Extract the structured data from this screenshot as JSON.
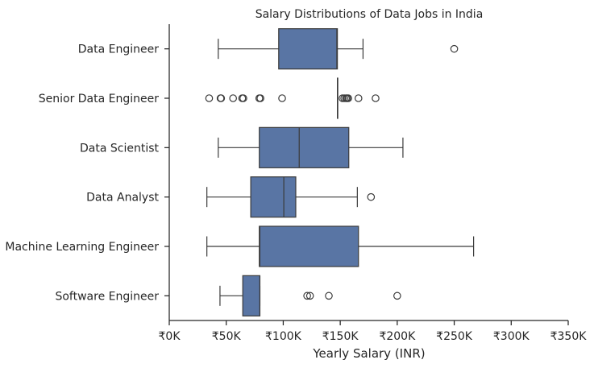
{
  "chart_data": {
    "type": "boxplot",
    "orientation": "horizontal",
    "title": "Salary Distributions of Data Jobs in India",
    "xlabel": "Yearly Salary (INR)",
    "ylabel": "",
    "xlim": [
      0,
      350000
    ],
    "xticks": [
      0,
      50000,
      100000,
      150000,
      200000,
      250000,
      300000,
      350000
    ],
    "xtick_labels": [
      "₹0K",
      "₹50K",
      "₹100K",
      "₹150K",
      "₹200K",
      "₹250K",
      "₹300K",
      "₹350K"
    ],
    "grid": false,
    "box_color": "#5975a4",
    "line_color": "#3a3a3a",
    "categories": [
      "Data Engineer",
      "Senior Data Engineer",
      "Data Scientist",
      "Data Analyst",
      "Machine Learning Engineer",
      "Software Engineer"
    ],
    "boxes": [
      {
        "name": "Data Engineer",
        "whisker_low": 43000,
        "q1": 96000,
        "median": 147000,
        "q3": 147500,
        "whisker_high": 170000,
        "outliers": [
          250000
        ]
      },
      {
        "name": "Senior Data Engineer",
        "whisker_low": 147500,
        "q1": 147500,
        "median": 147500,
        "q3": 147500,
        "whisker_high": 147500,
        "outliers": [
          35000,
          45000,
          45500,
          56000,
          64000,
          65000,
          79000,
          80000,
          99000,
          152000,
          153500,
          155000,
          156000,
          157000,
          166000,
          181000
        ]
      },
      {
        "name": "Data Scientist",
        "whisker_low": 43000,
        "q1": 79000,
        "median": 114000,
        "q3": 157500,
        "whisker_high": 205000,
        "outliers": []
      },
      {
        "name": "Data Analyst",
        "whisker_low": 33000,
        "q1": 71500,
        "median": 100500,
        "q3": 111000,
        "whisker_high": 165000,
        "outliers": [
          177000
        ]
      },
      {
        "name": "Machine Learning Engineer",
        "whisker_low": 33000,
        "q1": 79000,
        "median": 79500,
        "q3": 166000,
        "whisker_high": 267000,
        "outliers": []
      },
      {
        "name": "Software Engineer",
        "whisker_low": 44500,
        "q1": 64500,
        "median": 79500,
        "q3": 79500,
        "whisker_high": 79500,
        "outliers": [
          121000,
          123500,
          140000,
          200000
        ]
      }
    ]
  }
}
